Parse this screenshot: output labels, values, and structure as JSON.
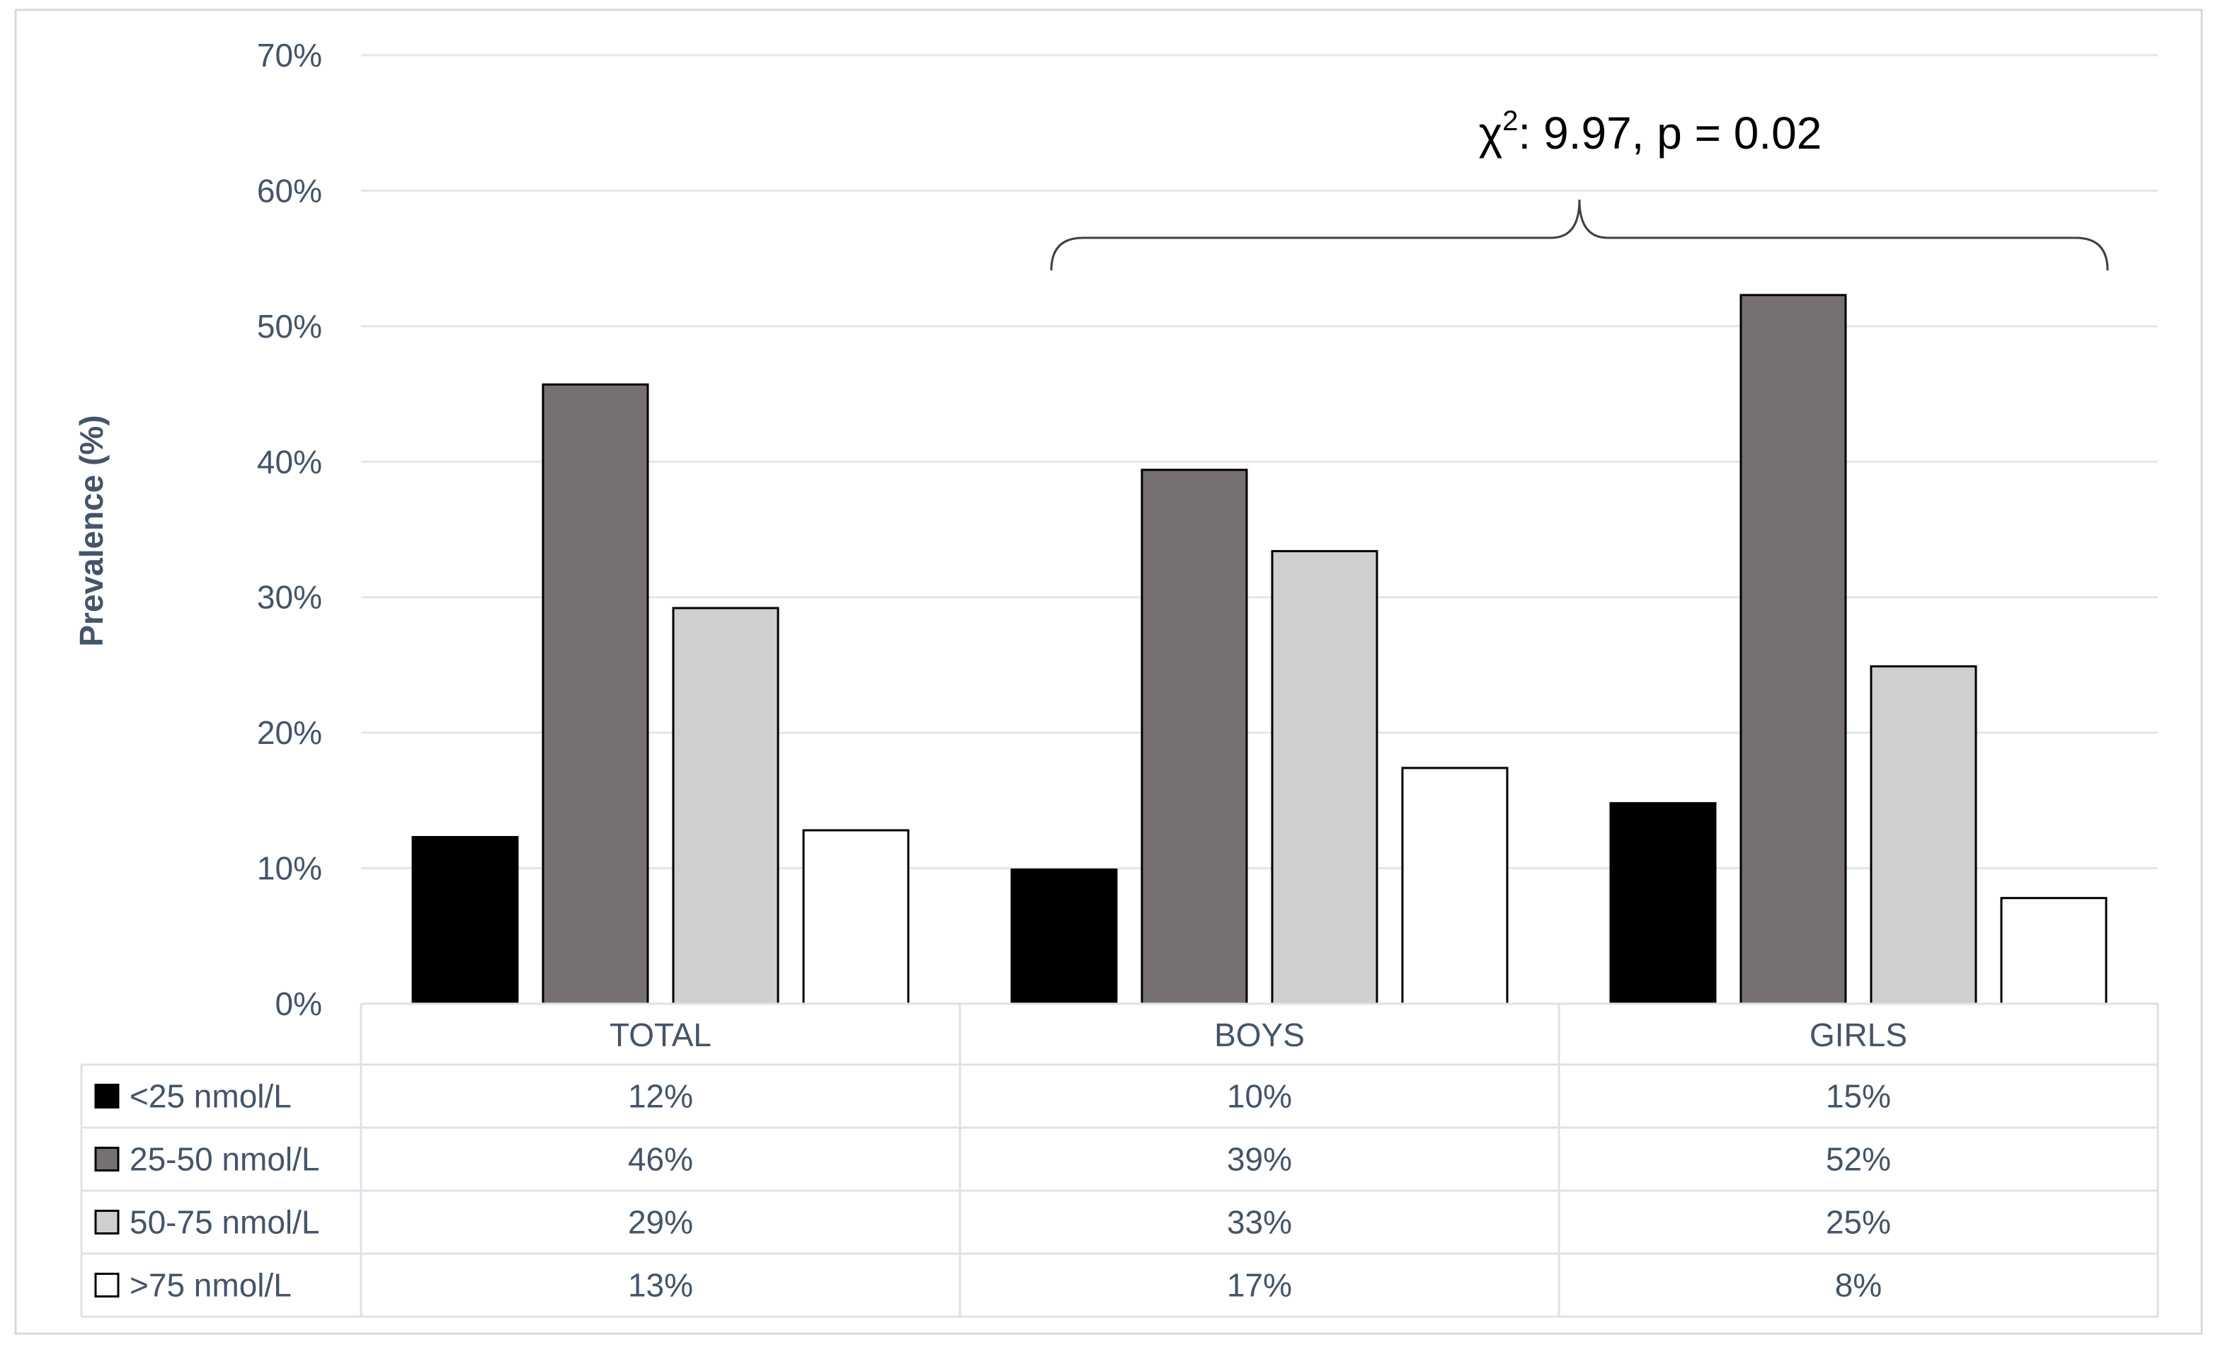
{
  "chart_data": {
    "type": "bar",
    "ylabel": "Prevalence (%)",
    "ylim": [
      0,
      70
    ],
    "yticks": [
      "0%",
      "10%",
      "20%",
      "30%",
      "40%",
      "50%",
      "60%",
      "70%"
    ],
    "grid": true,
    "categories": [
      "TOTAL",
      "BOYS",
      "GIRLS"
    ],
    "series": [
      {
        "name": "<25 nmol/L",
        "color": "#000000",
        "values": [
          12.3,
          9.9,
          14.8
        ],
        "labels": [
          "12%",
          "10%",
          "15%"
        ]
      },
      {
        "name": "25-50 nmol/L",
        "color": "#767170",
        "values": [
          45.7,
          39.4,
          52.3
        ],
        "labels": [
          "46%",
          "39%",
          "52%"
        ]
      },
      {
        "name": "50-75 nmol/L",
        "color": "#d0cece",
        "values": [
          29.2,
          33.4,
          24.9
        ],
        "labels": [
          "29%",
          "33%",
          "25%"
        ]
      },
      {
        "name": ">75 nmol/L",
        "color": "#ffffff",
        "values": [
          12.8,
          17.4,
          7.8
        ],
        "labels": [
          "13%",
          "17%",
          "8%"
        ]
      }
    ],
    "annotation": {
      "text_prefix": "χ",
      "superscript": "2",
      "text_suffix": ": 9.97, p = 0.02",
      "spans": [
        "BOYS",
        "GIRLS"
      ]
    },
    "legend_position": "data-table"
  }
}
